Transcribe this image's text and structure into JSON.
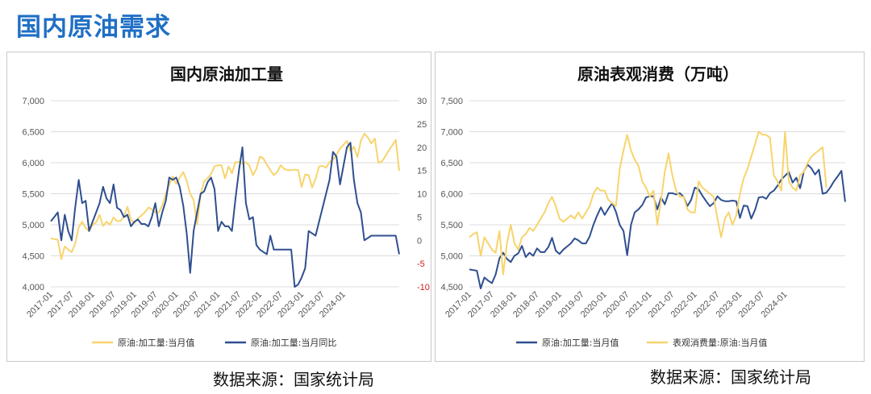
{
  "page_title": "国内原油需求",
  "sources": [
    "数据来源：国家统计局",
    "数据来源：国家统计局"
  ],
  "colors": {
    "yellow": "#f7d46c",
    "blue": "#2f4f8f",
    "grid": "#dcdcdc",
    "neg": "#d11e1e",
    "title_blue": "#1f6fc5"
  },
  "chart_data": [
    {
      "type": "line",
      "title": "国内原油加工量",
      "y_ticks_left": [
        "7,000",
        "6,500",
        "6,000",
        "5,500",
        "5,000",
        "4,500",
        "4,000"
      ],
      "y_ticks_right": [
        "30",
        "25",
        "20",
        "15",
        "10",
        "5",
        "0",
        "-5",
        "-10"
      ],
      "x_ticks": [
        "2017-01",
        "2017-07",
        "2018-01",
        "2018-07",
        "2019-01",
        "2019-07",
        "2020-01",
        "2020-07",
        "2021-01",
        "2021-07",
        "2022-01",
        "2022-07",
        "2023-01",
        "2023-07",
        "2024-01"
      ],
      "ylim_left": [
        4000,
        7000
      ],
      "ylim_right": [
        -10,
        30
      ],
      "x_start": "2017-01",
      "legend": [
        "原油:加工量:当月值",
        "原油:加工量:当月同比"
      ],
      "series": [
        {
          "name": "原油:加工量:当月值",
          "axis": "left",
          "color": "#f7d46c",
          "values": [
            4780,
            4770,
            4760,
            4450,
            4650,
            4600,
            4560,
            4700,
            4960,
            5050,
            4950,
            4900,
            5000,
            5040,
            5160,
            4980,
            5050,
            5000,
            5120,
            5060,
            5060,
            5140,
            5290,
            5080,
            5030,
            5100,
            5150,
            5200,
            5280,
            5250,
            5200,
            5200,
            5310,
            5500,
            5650,
            5780,
            5660,
            5760,
            5850,
            5710,
            5500,
            5400,
            5010,
            5500,
            5700,
            5750,
            5820,
            5940,
            5960,
            5960,
            5750,
            5940,
            5830,
            6010,
            6010,
            5990,
            6010,
            5950,
            5800,
            5900,
            6100,
            6070,
            5970,
            5880,
            5800,
            5850,
            5960,
            5900,
            5880,
            5880,
            5890,
            5880,
            5610,
            5810,
            5800,
            5600,
            5740,
            5940,
            5950,
            5920,
            6010,
            6050,
            6130,
            6230,
            6290,
            6350,
            6180,
            6260,
            6090,
            6360,
            6470,
            6410,
            6310,
            6390,
            6000,
            6020,
            6100,
            6200,
            6280,
            6370,
            5870
          ]
        },
        {
          "name": "原油:加工量:当月同比",
          "axis": "right",
          "color": "#2f4f8f",
          "values": [
            4.1,
            5.0,
            6.0,
            0.0,
            5.5,
            2.0,
            0.0,
            7.0,
            13.0,
            8.0,
            8.5,
            2.0,
            4.0,
            6.0,
            8.0,
            11.5,
            9.0,
            8.0,
            12.0,
            7.0,
            6.5,
            5.0,
            5.5,
            3.0,
            4.0,
            4.5,
            3.5,
            3.5,
            3.0,
            5.0,
            8.0,
            3.0,
            6.0,
            8.5,
            13.5,
            13.0,
            13.5,
            11.5,
            7.5,
            1.5,
            -7.0,
            2.0,
            6.0,
            10.0,
            10.5,
            12.5,
            13.5,
            11.0,
            2.0,
            4.0,
            3.0,
            3.0,
            2.0,
            9.0,
            15.0,
            20.0,
            8.0,
            4.5,
            5.0,
            -1.0,
            -2.0,
            -2.5,
            -3.0,
            1.0,
            -2.0,
            -2.0,
            -2.0,
            -2.0,
            -2.0,
            -2.0,
            -10.0,
            -9.5,
            -8.0,
            -6.0,
            2.0,
            1.5,
            1.0,
            4.0,
            7.0,
            10.0,
            13.0,
            19.0,
            18.0,
            12.0,
            16.0,
            20.0,
            21.0,
            13.0,
            8.0,
            6.0,
            0.0,
            0.5,
            1.0,
            1.0,
            1.0,
            1.0,
            1.0,
            1.0,
            1.0,
            1.0,
            -3.0
          ]
        }
      ]
    },
    {
      "type": "line",
      "title": "原油表观消费（万吨）",
      "y_ticks_left": [
        "7,500",
        "7,000",
        "6,500",
        "6,000",
        "5,500",
        "5,000",
        "4,500"
      ],
      "x_ticks": [
        "2017-01",
        "2017-07",
        "2018-01",
        "2018-07",
        "2019-01",
        "2019-07",
        "2020-01",
        "2020-07",
        "2021-01",
        "2021-07",
        "2022-01",
        "2022-07",
        "2023-01",
        "2023-07",
        "2024-01"
      ],
      "ylim_left": [
        4500,
        7500
      ],
      "x_start": "2017-01",
      "legend": [
        "原油:加工量:当月值",
        "表观消费量:原油:当月值"
      ],
      "series": [
        {
          "name": "原油:加工量:当月值",
          "axis": "left",
          "color": "#2f4f8f",
          "values": [
            4780,
            4770,
            4760,
            4450,
            4650,
            4600,
            4560,
            4700,
            4960,
            5050,
            4950,
            4900,
            5000,
            5040,
            5160,
            4980,
            5050,
            5000,
            5120,
            5060,
            5060,
            5140,
            5290,
            5080,
            5030,
            5100,
            5150,
            5200,
            5280,
            5250,
            5200,
            5200,
            5310,
            5500,
            5650,
            5780,
            5660,
            5760,
            5850,
            5710,
            5500,
            5400,
            5010,
            5500,
            5700,
            5750,
            5820,
            5940,
            5960,
            5960,
            5750,
            5940,
            5830,
            6010,
            6010,
            5990,
            6010,
            5950,
            5800,
            5900,
            6100,
            6070,
            5970,
            5880,
            5800,
            5850,
            5960,
            5900,
            5880,
            5880,
            5890,
            5880,
            5610,
            5810,
            5800,
            5600,
            5740,
            5940,
            5950,
            5920,
            6010,
            6050,
            6130,
            6230,
            6290,
            6350,
            6180,
            6260,
            6090,
            6360,
            6470,
            6410,
            6310,
            6390,
            6000,
            6020,
            6100,
            6200,
            6280,
            6370,
            5870
          ]
        },
        {
          "name": "表观消费量:原油:当月值",
          "axis": "left",
          "color": "#f7d46c",
          "values": [
            5300,
            5350,
            5380,
            5000,
            5300,
            5200,
            5100,
            5050,
            5400,
            4700,
            5200,
            5500,
            5200,
            5100,
            5300,
            5350,
            5450,
            5400,
            5500,
            5600,
            5700,
            5850,
            5950,
            5800,
            5600,
            5550,
            5600,
            5650,
            5600,
            5700,
            5600,
            5700,
            5800,
            6000,
            6100,
            6050,
            6050,
            5900,
            5850,
            5800,
            6400,
            6700,
            6950,
            6700,
            6550,
            6450,
            6200,
            6100,
            5950,
            6050,
            5500,
            5900,
            6350,
            6650,
            6300,
            6050,
            5950,
            5950,
            5750,
            5700,
            5700,
            6200,
            6100,
            6050,
            6000,
            5950,
            5600,
            5300,
            5600,
            5700,
            5500,
            5650,
            6000,
            6250,
            6400,
            6600,
            6800,
            7000,
            6950,
            6950,
            6900,
            6300,
            6200,
            6050,
            7000,
            6200,
            6100,
            6050,
            6300,
            6350,
            6500,
            6600,
            6650,
            6700,
            6750,
            6100
          ]
        }
      ]
    }
  ]
}
